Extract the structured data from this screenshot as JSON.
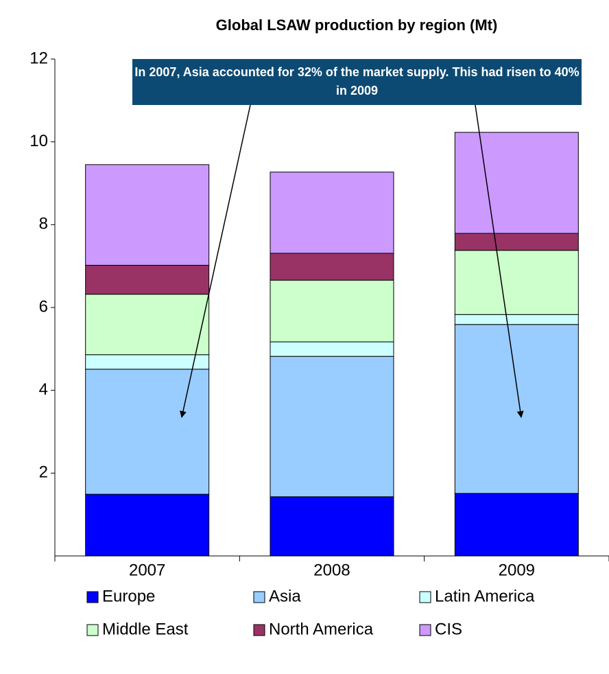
{
  "chart_data": {
    "type": "stacked_bar",
    "title": "Global LSAW production by region (Mt)",
    "annotation": "In 2007, Asia accounted for 32% of the market supply. This had risen to 40% in 2009",
    "categories": [
      "2007",
      "2008",
      "2009"
    ],
    "series": [
      {
        "name": "Europe",
        "color": "#0000ff",
        "values": [
          1.49,
          1.43,
          1.51
        ]
      },
      {
        "name": "Asia",
        "color": "#99ccff",
        "values": [
          3.02,
          3.39,
          4.08
        ]
      },
      {
        "name": "Latin America",
        "color": "#ccffff",
        "values": [
          0.35,
          0.35,
          0.24
        ]
      },
      {
        "name": "Middle East",
        "color": "#ccffcc",
        "values": [
          1.46,
          1.49,
          1.55
        ]
      },
      {
        "name": "North America",
        "color": "#993366",
        "values": [
          0.7,
          0.65,
          0.41
        ]
      },
      {
        "name": "CIS",
        "color": "#cc99ff",
        "values": [
          2.43,
          1.96,
          2.44
        ]
      }
    ],
    "ylim": [
      0,
      12
    ],
    "yticks": [
      2,
      4,
      6,
      8,
      10,
      12
    ]
  }
}
